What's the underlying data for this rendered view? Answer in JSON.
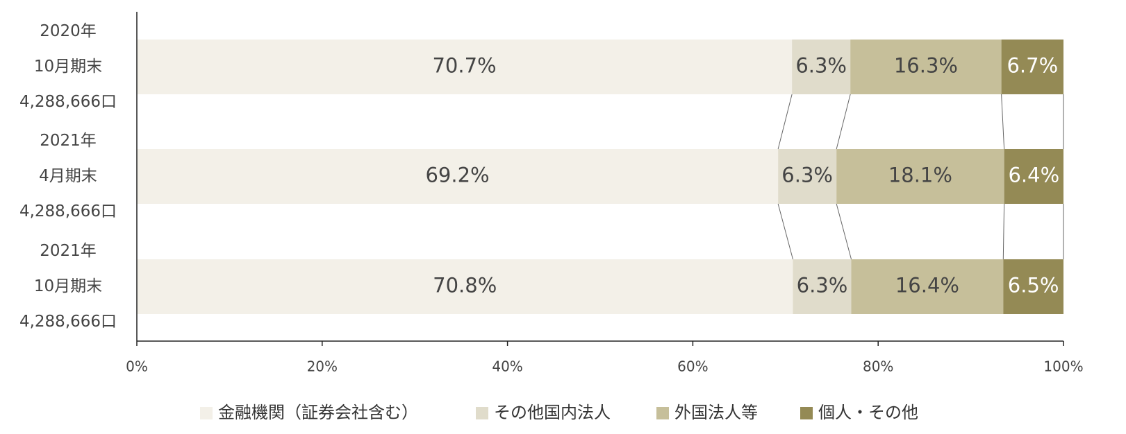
{
  "chart_data": {
    "type": "stacked-bar-horizontal",
    "categories": [
      [
        "2020年",
        "10月期末",
        "4,288,666口"
      ],
      [
        "2021年",
        "4月期末",
        "4,288,666口"
      ],
      [
        "2021年",
        "10月期末",
        "4,288,666口"
      ]
    ],
    "series": [
      {
        "name": "金融機関（証券会社含む）",
        "color": "#f3f0e8",
        "values": [
          70.7,
          69.2,
          70.8
        ],
        "value_labels": [
          "70.7%",
          "69.2%",
          "70.8%"
        ]
      },
      {
        "name": "その他国内法人",
        "color": "#e0dccb",
        "values": [
          6.3,
          6.3,
          6.3
        ],
        "value_labels": [
          "6.3%",
          "6.3%",
          "6.3%"
        ]
      },
      {
        "name": "外国法人等",
        "color": "#c6bf9a",
        "values": [
          16.3,
          18.1,
          16.4
        ],
        "value_labels": [
          "16.3%",
          "18.1%",
          "16.4%"
        ]
      },
      {
        "name": "個人・その他",
        "color": "#948a55",
        "values": [
          6.7,
          6.4,
          6.5
        ],
        "value_labels": [
          "6.7%",
          "6.4%",
          "6.5%"
        ]
      }
    ],
    "xlim": [
      0,
      100
    ],
    "xticks": [
      {
        "value": 0,
        "label": "0%"
      },
      {
        "value": 20,
        "label": "20%"
      },
      {
        "value": 40,
        "label": "40%"
      },
      {
        "value": 60,
        "label": "60%"
      },
      {
        "value": 80,
        "label": "80%"
      },
      {
        "value": 100,
        "label": "100%"
      }
    ],
    "legend": "bottom"
  }
}
